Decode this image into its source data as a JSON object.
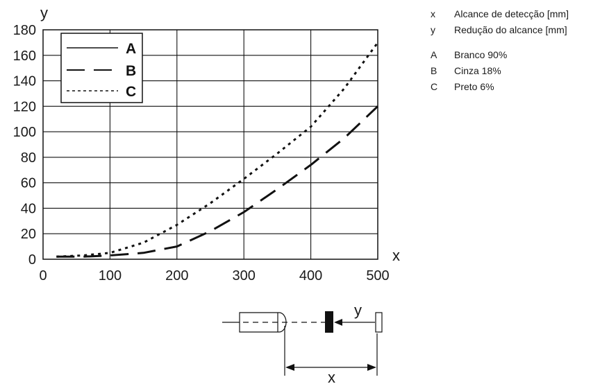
{
  "chart_data": {
    "type": "line",
    "x_axis_letter": "x",
    "y_axis_letter": "y",
    "xlim": [
      0,
      500
    ],
    "ylim": [
      0,
      180
    ],
    "x_ticks": [
      0,
      100,
      200,
      300,
      400,
      500
    ],
    "y_ticks": [
      0,
      20,
      40,
      60,
      80,
      100,
      120,
      140,
      160,
      180
    ],
    "grid": true,
    "legend_position": "top-left",
    "series": [
      {
        "name": "A",
        "style": "solid",
        "color": "#111111",
        "x": [],
        "y": []
      },
      {
        "name": "B",
        "style": "dashed",
        "color": "#111111",
        "x": [
          20,
          60,
          100,
          150,
          200,
          250,
          300,
          350,
          400,
          450,
          500
        ],
        "y": [
          2,
          2,
          3,
          5,
          10,
          22,
          37,
          55,
          74,
          95,
          120
        ]
      },
      {
        "name": "C",
        "style": "dotted",
        "color": "#111111",
        "x": [
          20,
          60,
          100,
          150,
          200,
          250,
          300,
          350,
          400,
          450,
          500
        ],
        "y": [
          2,
          3,
          5,
          13,
          27,
          44,
          63,
          83,
          104,
          134,
          170
        ]
      }
    ]
  },
  "side_legend": {
    "axes": [
      {
        "key": "x",
        "text": "Alcance de detecção [mm]"
      },
      {
        "key": "y",
        "text": "Redução do alcance [mm]"
      }
    ],
    "series": [
      {
        "key": "A",
        "text": "Branco 90%"
      },
      {
        "key": "B",
        "text": "Cinza 18%"
      },
      {
        "key": "C",
        "text": "Preto 6%"
      }
    ]
  },
  "diagram": {
    "y_label": "y",
    "x_label": "x"
  }
}
